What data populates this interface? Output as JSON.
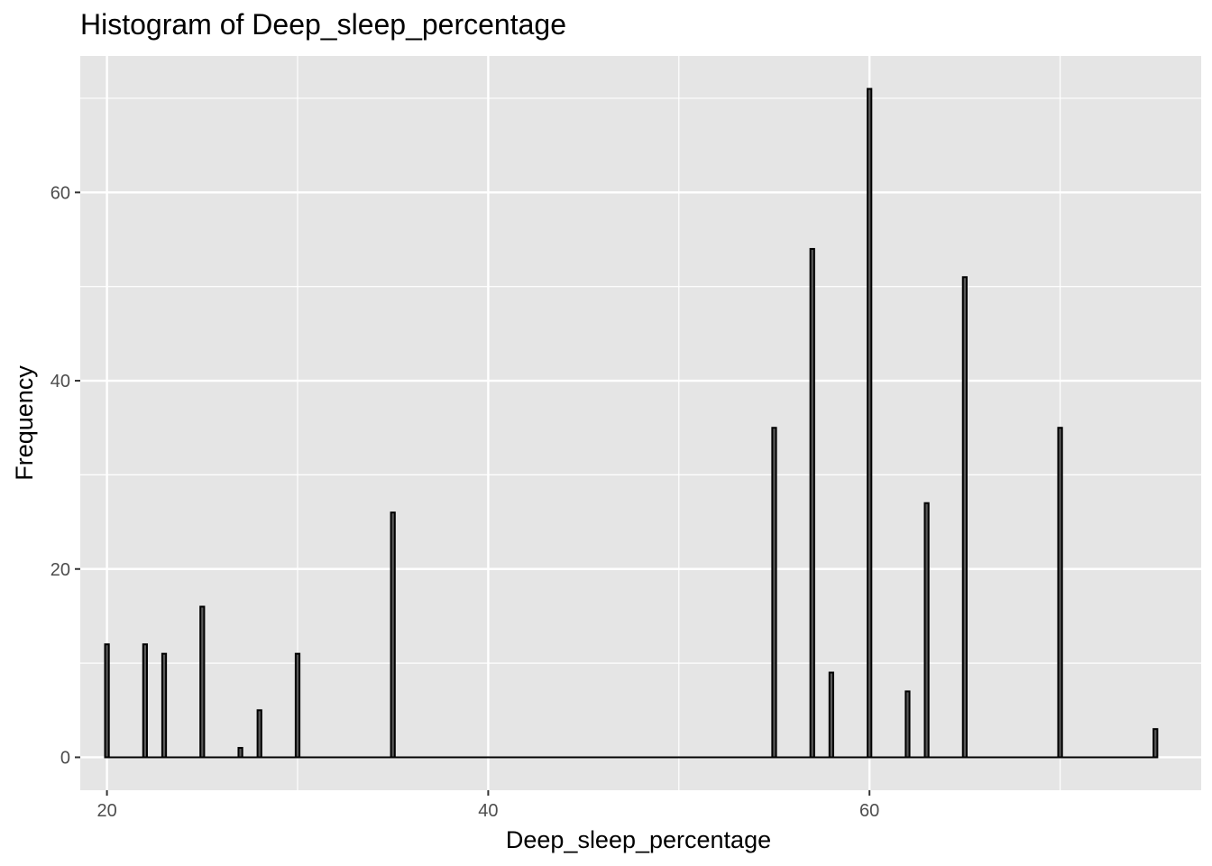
{
  "chart_data": {
    "type": "bar",
    "title": "Histogram of Deep_sleep_percentage",
    "xlabel": "Deep_sleep_percentage",
    "ylabel": "Frequency",
    "xlim": [
      18.6,
      77.4
    ],
    "ylim": [
      -3.5,
      74.5
    ],
    "x_ticks": [
      20,
      40,
      60
    ],
    "y_ticks": [
      0,
      20,
      40,
      60
    ],
    "bin_width": 0.2,
    "grid": true,
    "background": "#e5e5e5",
    "grid_color": "#ffffff",
    "bar_fill": "#595959",
    "bar_outline": "#000000",
    "bars": [
      {
        "x": 20,
        "count": 12
      },
      {
        "x": 22,
        "count": 12
      },
      {
        "x": 23,
        "count": 11
      },
      {
        "x": 25,
        "count": 16
      },
      {
        "x": 27,
        "count": 1
      },
      {
        "x": 28,
        "count": 5
      },
      {
        "x": 30,
        "count": 11
      },
      {
        "x": 35,
        "count": 26
      },
      {
        "x": 55,
        "count": 35
      },
      {
        "x": 57,
        "count": 54
      },
      {
        "x": 58,
        "count": 9
      },
      {
        "x": 60,
        "count": 71
      },
      {
        "x": 62,
        "count": 7
      },
      {
        "x": 63,
        "count": 27
      },
      {
        "x": 65,
        "count": 51
      },
      {
        "x": 70,
        "count": 35
      },
      {
        "x": 75,
        "count": 3
      }
    ],
    "baseline_range": [
      19.9,
      75.1
    ]
  }
}
